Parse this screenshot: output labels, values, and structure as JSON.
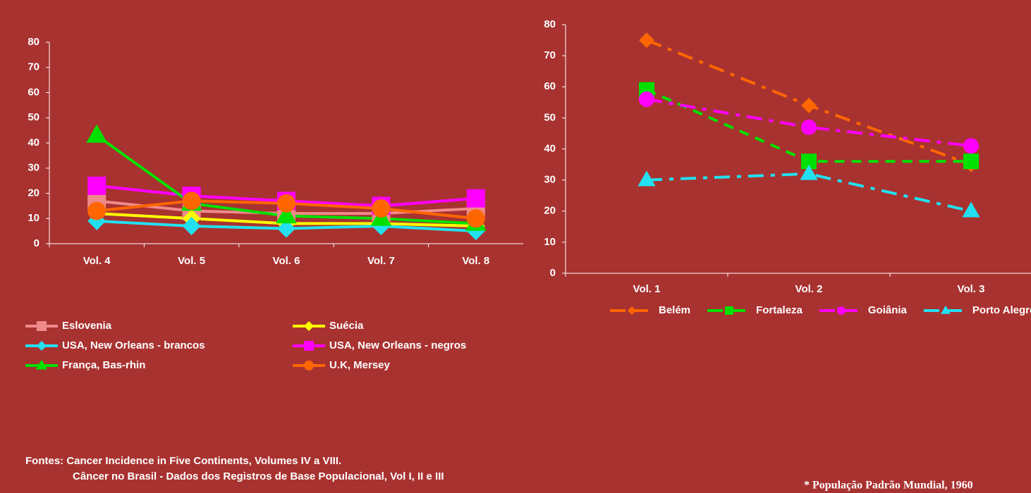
{
  "chart_data": [
    {
      "type": "line",
      "categories": [
        "Vol. 4",
        "Vol. 5",
        "Vol. 6",
        "Vol. 7",
        "Vol. 8"
      ],
      "ylim": [
        0,
        80
      ],
      "yticks": [
        0,
        10,
        20,
        30,
        40,
        50,
        60,
        70,
        80
      ],
      "legend": "bottom",
      "series": [
        {
          "name": "Eslovenia",
          "color": "#f08a8a",
          "marker": "square",
          "line_style": "solid",
          "values": [
            17,
            13,
            12,
            12,
            14
          ]
        },
        {
          "name": "Suécia",
          "color": "#ffff00",
          "marker": "diamond",
          "line_style": "solid",
          "values": [
            12,
            10,
            8,
            8,
            7
          ]
        },
        {
          "name": "USA, New Orleans - brancos",
          "color": "#22e0f0",
          "marker": "diamond",
          "line_style": "solid",
          "values": [
            9,
            7,
            6,
            7,
            5
          ]
        },
        {
          "name": "USA, New Orleans - negros",
          "color": "#ff00ff",
          "marker": "square",
          "line_style": "solid",
          "values": [
            23,
            19,
            17,
            15,
            18
          ]
        },
        {
          "name": "França, Bas-rhin",
          "color": "#00e000",
          "marker": "triangle",
          "line_style": "solid",
          "values": [
            43,
            16,
            11,
            10,
            8
          ]
        },
        {
          "name": "U.K, Mersey",
          "color": "#ff6600",
          "marker": "circle",
          "line_style": "solid",
          "values": [
            13,
            17,
            16,
            14,
            10
          ]
        }
      ]
    },
    {
      "type": "line",
      "categories": [
        "Vol. 1",
        "Vol. 2",
        "Vol. 3"
      ],
      "ylim": [
        0,
        80
      ],
      "yticks": [
        0,
        10,
        20,
        30,
        40,
        50,
        60,
        70,
        80
      ],
      "legend": "bottom",
      "series": [
        {
          "name": "Belém",
          "color": "#ff6600",
          "marker": "diamond",
          "line_style": "dashdot",
          "values": [
            75,
            54,
            35
          ]
        },
        {
          "name": "Fortaleza",
          "color": "#00e000",
          "marker": "square",
          "line_style": "dashed",
          "values": [
            59,
            36,
            36
          ]
        },
        {
          "name": "Goiânia",
          "color": "#ff00ff",
          "marker": "circle",
          "line_style": "dashdot",
          "values": [
            56,
            47,
            41
          ]
        },
        {
          "name": "Porto Alegre",
          "color": "#22e0f0",
          "marker": "triangle",
          "line_style": "dashdot",
          "values": [
            30,
            32,
            20
          ]
        }
      ]
    }
  ],
  "sources": [
    "Fontes: Cancer Incidence in Five Continents, Volumes IV a VIII.",
    "Câncer no Brasil - Dados dos Registros de Base Populacional, Vol I, II e III"
  ],
  "footnote": "* População Padrão Mundial, 1960"
}
